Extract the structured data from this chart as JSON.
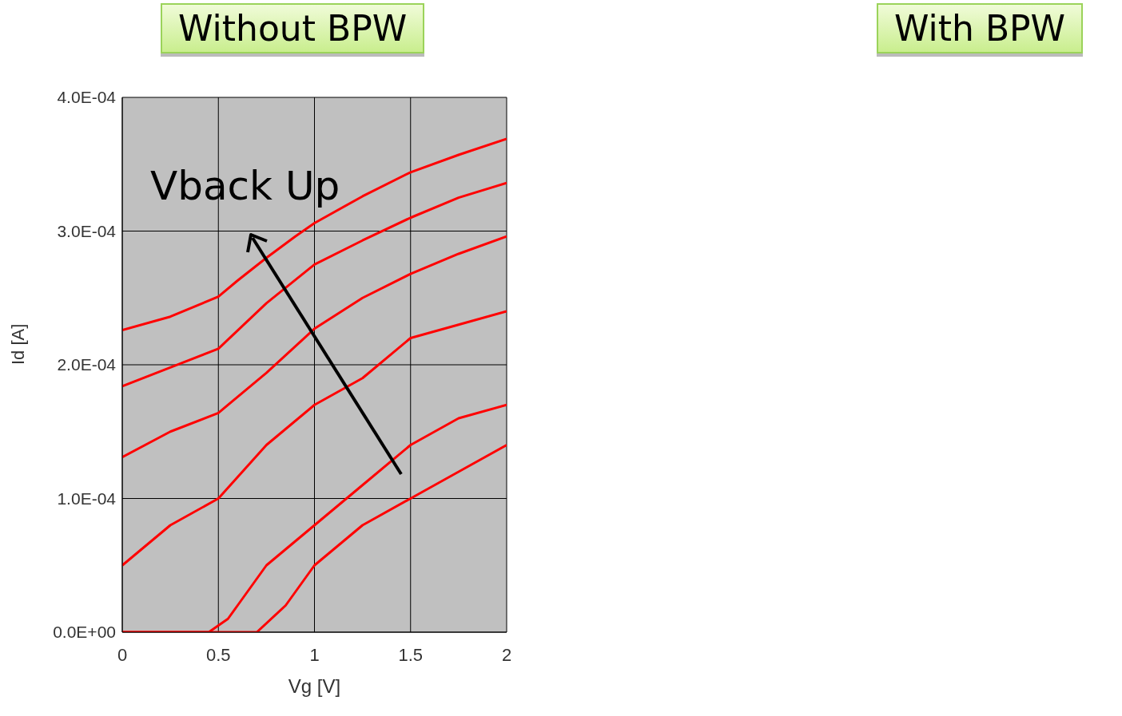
{
  "chart_data": {
    "type": "line",
    "title": "Without BPW",
    "xlabel": "Vg [V]",
    "ylabel": "Id [A]",
    "annotations": [
      "Vback Up",
      "With BPW"
    ],
    "xlim": [
      0,
      2
    ],
    "xticks": [
      0,
      0.5,
      1,
      1.5,
      2
    ],
    "ylim": [
      0,
      0.0004
    ],
    "yticks": [
      {
        "value": 0,
        "label": "0.0E+00"
      },
      {
        "value": 0.0001,
        "label": "1.0E-04"
      },
      {
        "value": 0.0002,
        "label": "2.0E-04"
      },
      {
        "value": 0.0003,
        "label": "3.0E-04"
      },
      {
        "value": 0.0004,
        "label": "4.0E-04"
      }
    ],
    "grid": true,
    "marker": "none",
    "line_style": "solid",
    "series": [
      {
        "color": "#ff0000",
        "x": [
          0,
          0.25,
          0.5,
          0.6,
          0.75,
          0.9,
          1,
          1.25,
          1.5,
          1.75,
          2
        ],
        "values": [
          0.000226,
          0.000236,
          0.000251,
          0.000263,
          0.00028,
          0.000296,
          0.000306,
          0.000326,
          0.000344,
          0.000357,
          0.000369
        ]
      },
      {
        "color": "#ff0000",
        "x": [
          0,
          0.25,
          0.5,
          0.75,
          1,
          1.25,
          1.5,
          1.75,
          2
        ],
        "values": [
          0.000184,
          0.000198,
          0.000212,
          0.000246,
          0.000275,
          0.000293,
          0.00031,
          0.000325,
          0.000336
        ]
      },
      {
        "color": "#ff0000",
        "x": [
          0,
          0.25,
          0.5,
          0.75,
          1,
          1.25,
          1.5,
          1.75,
          2
        ],
        "values": [
          0.000131,
          0.00015,
          0.000164,
          0.000194,
          0.000227,
          0.00025,
          0.000268,
          0.000283,
          0.000296
        ]
      },
      {
        "color": "#ff0000",
        "x": [
          0,
          0.25,
          0.5,
          0.75,
          1,
          1.25,
          1.5,
          1.75,
          2
        ],
        "values": [
          5e-05,
          8e-05,
          0.0001,
          0.00014,
          0.00017,
          0.00019,
          0.00022,
          0.00023,
          0.00024
        ]
      },
      {
        "color": "#ff0000",
        "x": [
          0,
          0.45,
          0.55,
          0.6,
          0.75,
          1,
          1.25,
          1.5,
          1.75,
          2
        ],
        "values": [
          0,
          0,
          1e-05,
          2e-05,
          5e-05,
          8e-05,
          0.00011,
          0.00014,
          0.00016,
          0.00017
        ]
      },
      {
        "color": "#ff0000",
        "x": [
          0,
          0.7,
          0.85,
          1,
          1.25,
          1.5,
          1.75,
          2
        ],
        "values": [
          0,
          0,
          2e-05,
          5e-05,
          8e-05,
          0.0001,
          0.00012,
          0.00014
        ]
      }
    ]
  }
}
